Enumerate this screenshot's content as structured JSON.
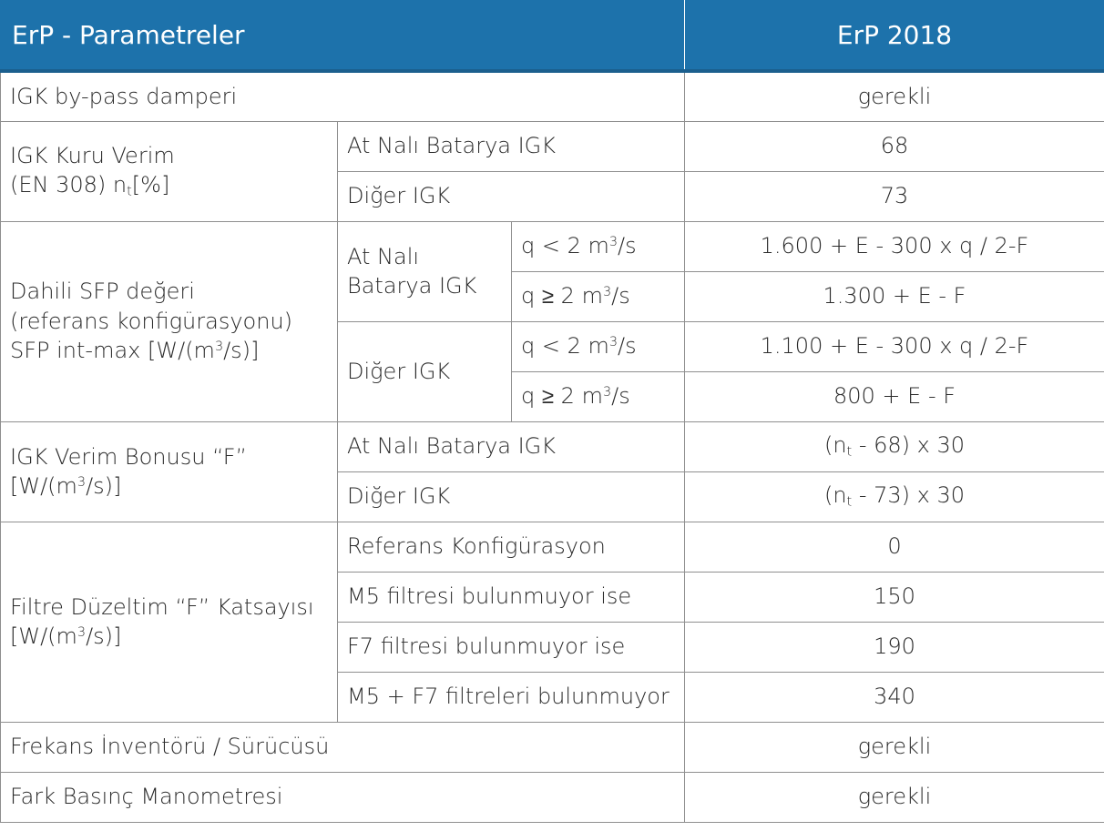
{
  "header": {
    "left": "ErP - Parametreler",
    "right": "ErP 2018"
  },
  "rows": {
    "bypass": {
      "label": "IGK by-pass damperi",
      "value": "gerekli"
    },
    "kuru": {
      "label_line1": "IGK Kuru Verim",
      "label_line2_pre": "(EN 308) n",
      "label_line2_sub": "t",
      "label_line2_post": "[%]",
      "sub1": {
        "label": "At Nalı Batarya IGK",
        "value": "68"
      },
      "sub2": {
        "label": "Diğer IGK",
        "value": "73"
      }
    },
    "sfp": {
      "label_line1": "Dahili SFP değeri",
      "label_line2": "(referans konfigürasyonu)",
      "label_line3_pre": "SFP int-max [W/(m",
      "label_line3_sup": "3",
      "label_line3_post": "/s)]",
      "group1_line1": "At Nalı",
      "group1_line2": "Batarya IGK",
      "group2": "Diğer IGK",
      "q_lt_pre": "q < 2 m",
      "q_ge_pre": "q ≥ 2  m",
      "q_sup": "3",
      "q_post": "/s",
      "v1": "1.600 + E - 300 x q / 2-F",
      "v2": "1.300 + E - F",
      "v3": "1.100 + E - 300 x q / 2-F",
      "v4": "800 + E - F"
    },
    "bonus": {
      "label_line1": "IGK Verim Bonusu  “F”",
      "label_line2_pre": "[W/(m",
      "label_line2_sup": "3",
      "label_line2_post": "/s)]",
      "sub1": {
        "label": "At Nalı Batarya IGK",
        "value_pre": "(n",
        "value_sub": "t",
        "value_post": " - 68) x 30"
      },
      "sub2": {
        "label": "Diğer IGK",
        "value_pre": "(n",
        "value_sub": "t",
        "value_post": " - 73) x 30"
      }
    },
    "filtre": {
      "label_line1": "Filtre Düzeltim  “F” Katsayısı",
      "label_line2_pre": "[W/(m",
      "label_line2_sup": "3",
      "label_line2_post": "/s)]",
      "items": [
        {
          "label": "Referans Konfigürasyon",
          "value": "0"
        },
        {
          "label": "M5 filtresi bulunmuyor ise",
          "value": "150"
        },
        {
          "label": "F7 filtresi bulunmuyor ise",
          "value": "190"
        },
        {
          "label": "M5 + F7 filtreleri bulunmuyor",
          "value": "340"
        }
      ]
    },
    "frekans": {
      "label": "Frekans İnventörü / Sürücüsü",
      "value": "gerekli"
    },
    "fark": {
      "label": "Fark Basınç Manometresi",
      "value": "gerekli"
    }
  }
}
